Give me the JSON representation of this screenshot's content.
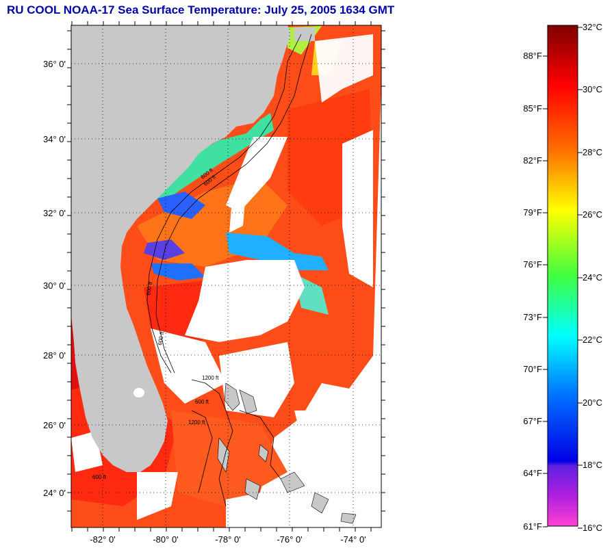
{
  "title": "RU COOL  NOAA-17  Sea Surface Temperature:  July 25, 2005 1634 GMT",
  "map": {
    "lat_labels": [
      "36° 0'",
      "34° 0'",
      "32° 0'",
      "30° 0'",
      "28° 0'",
      "26° 0'",
      "24° 0'"
    ],
    "lon_labels": [
      "-82° 0'",
      "-80° 0'",
      "-78° 0'",
      "-76° 0'",
      "-74° 0'"
    ],
    "land_color": "#c8c8c8",
    "cloud_color": "#ffffff",
    "grid": true,
    "contour_labels": [
      "600 ft",
      "600 ft",
      "600 ft",
      "600 ft",
      "1200 ft",
      "600 ft",
      "1200 ft",
      "600 ft"
    ]
  },
  "colorbar": {
    "celsius_labels": [
      "32°C",
      "30°C",
      "28°C",
      "26°C",
      "24°C",
      "22°C",
      "20°C",
      "18°C",
      "16°C"
    ],
    "fahrenheit_labels": [
      "88°F",
      "85°F",
      "82°F",
      "79°F",
      "76°F",
      "73°F",
      "70°F",
      "67°F",
      "64°F",
      "61°F"
    ]
  }
}
